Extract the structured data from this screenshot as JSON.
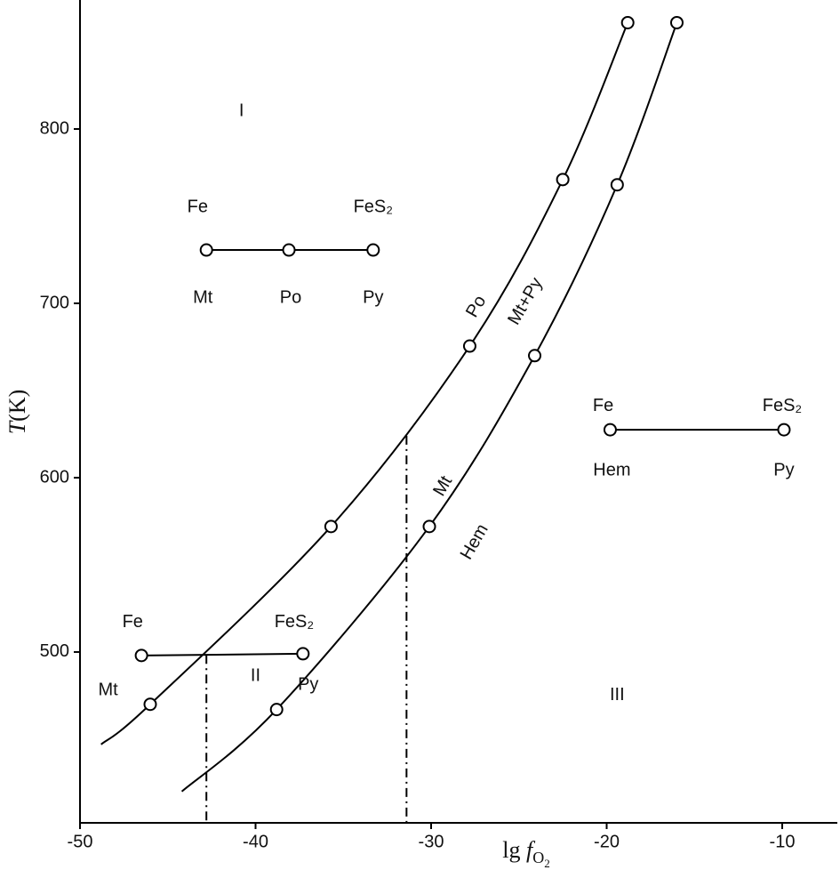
{
  "chart_data": {
    "type": "line",
    "x_label": [
      "lg",
      "f",
      "O",
      "2"
    ],
    "y_label": [
      "T",
      "(K)"
    ],
    "xlim": [
      -50,
      -6.86
    ],
    "ylim": [
      402,
      874
    ],
    "xticks": [
      -50,
      -40,
      -30,
      -20,
      -10
    ],
    "yticks": [
      500,
      600,
      700,
      800
    ],
    "grid": false,
    "color": "#000000",
    "series": [
      {
        "x": [
          -48.8,
          -46.0,
          -35.7,
          -27.8,
          -22.5,
          -18.8
        ],
        "values": [
          447,
          470,
          572,
          675.5,
          771,
          861
        ],
        "markers": [
          false,
          true,
          true,
          true,
          true,
          true
        ]
      },
      {
        "x": [
          -44.2,
          -38.8,
          -30.1,
          -24.1,
          -19.4,
          -16.0
        ],
        "values": [
          420,
          467,
          572,
          670,
          768,
          861
        ],
        "markers": [
          false,
          true,
          true,
          true,
          true,
          true
        ]
      }
    ],
    "tie_lines": [
      {
        "x": [
          -42.8,
          -38.1,
          -33.3
        ],
        "values": [
          730.6,
          730.6,
          730.6
        ]
      },
      {
        "x": [
          -19.8,
          -9.9
        ],
        "values": [
          627.5,
          627.5
        ]
      },
      {
        "x": [
          -46.5,
          -37.3
        ],
        "values": [
          498,
          499
        ]
      }
    ],
    "dashed_lines": [
      {
        "x": [
          -42.8,
          -42.8
        ],
        "values": [
          498.3,
          402
        ]
      },
      {
        "x": [
          -31.4,
          -31.4
        ],
        "values": [
          624,
          402
        ]
      }
    ],
    "annotations": [
      "I",
      "Fe",
      "FeS₂",
      "Mt",
      "Po",
      "Py",
      "Fe",
      "FeS₂",
      "Hem",
      "Py",
      "Fe",
      "FeS₂",
      "Mt",
      "II",
      "Py",
      "III",
      "Po",
      "Mt+Py",
      "Mt",
      "Hem"
    ]
  }
}
